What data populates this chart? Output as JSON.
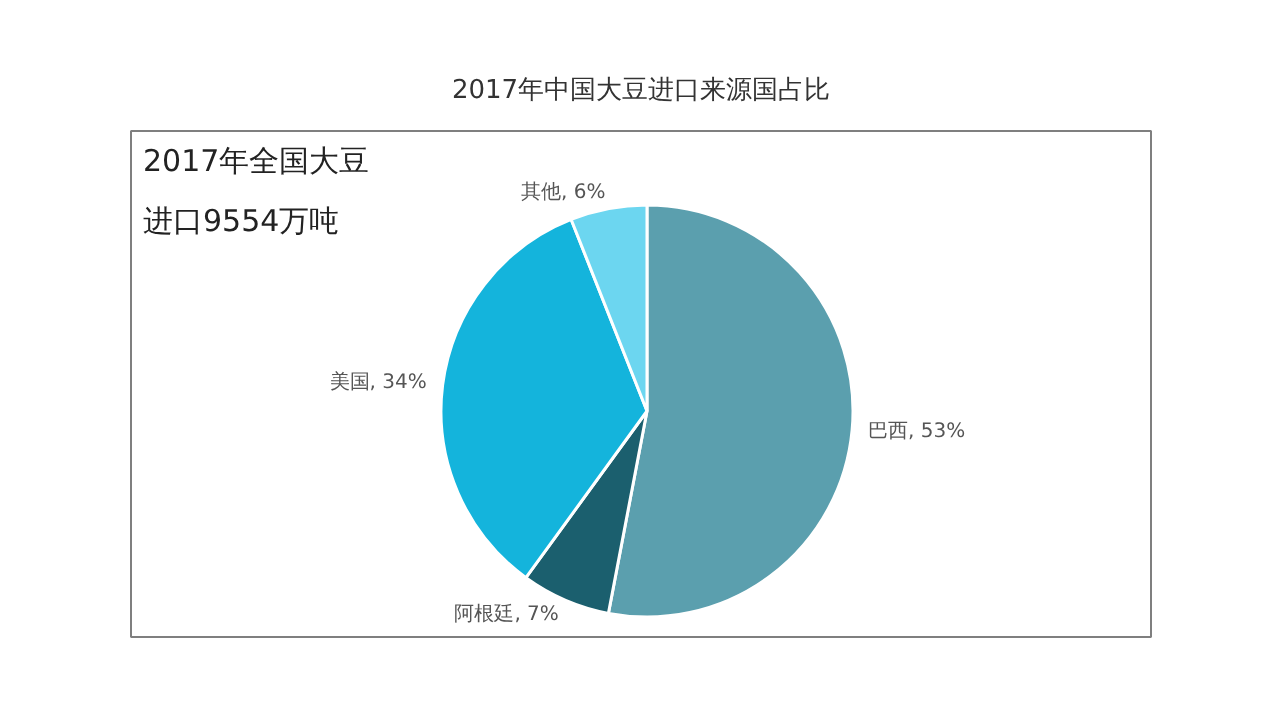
{
  "chart_data": {
    "type": "pie",
    "title": "2017年中国大豆进口来源国占比",
    "categories": [
      "巴西",
      "阿根廷",
      "美国",
      "其他"
    ],
    "values": [
      53,
      7,
      34,
      6
    ],
    "value_labels": [
      "53%",
      "7%",
      "34%",
      "6%"
    ],
    "colors": [
      "#5b9fae",
      "#1b5f6e",
      "#14b4dc",
      "#6cd6f0"
    ],
    "annotations": [
      "2017年全国大豆",
      "进口9554万吨"
    ]
  }
}
